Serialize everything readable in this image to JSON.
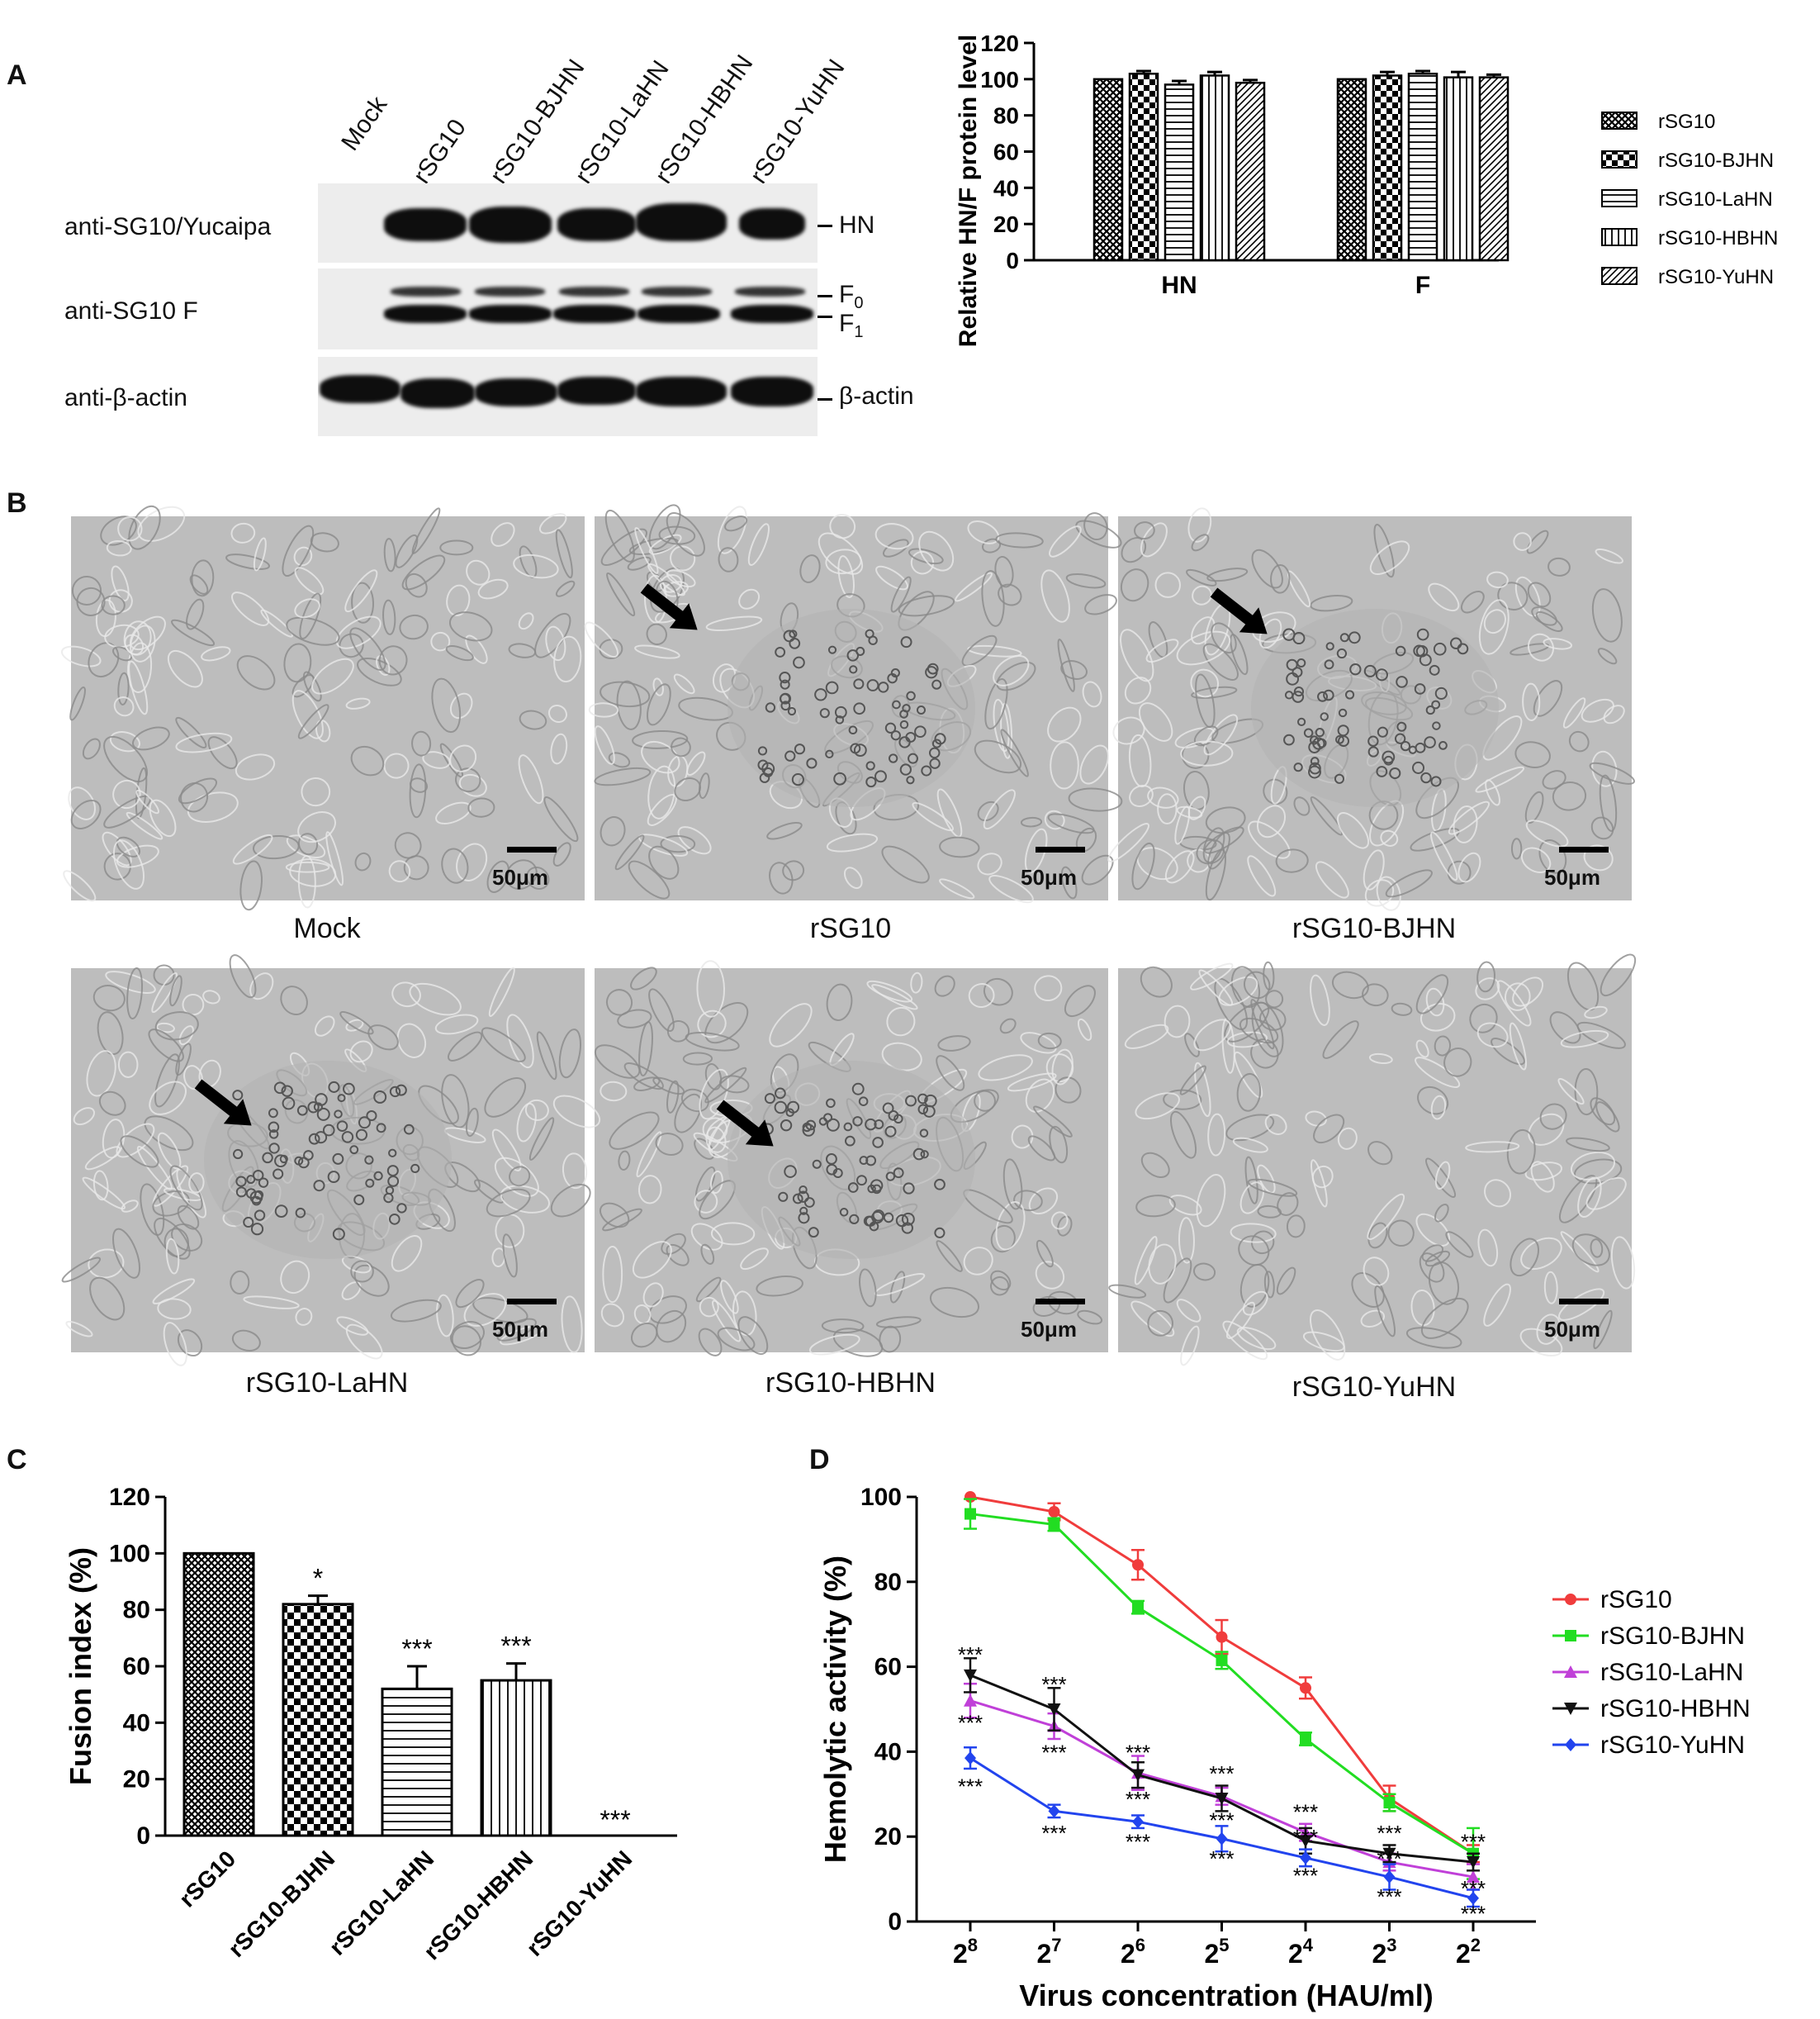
{
  "panel_letters": [
    "A",
    "B",
    "C",
    "D"
  ],
  "western": {
    "lanes": [
      "Mock",
      "rSG10",
      "rSG10-BJHN",
      "rSG10-LaHN",
      "rSG10-HBHN",
      "rSG10-YuHN"
    ],
    "rows": [
      "anti-SG10/Yucaipa",
      "anti-SG10 F",
      "anti-β-actin"
    ],
    "band_labels": {
      "hn": "HN",
      "f0": "F",
      "f0_sub": "0",
      "f1": "F",
      "f1_sub": "1",
      "actin": "β-actin"
    }
  },
  "micrographs": {
    "captions": [
      "Mock",
      "rSG10",
      "rSG10-BJHN",
      "rSG10-LaHN",
      "rSG10-HBHN",
      "rSG10-YuHN"
    ],
    "scale_label": "50μm"
  },
  "chart_data": [
    {
      "panel": "A",
      "type": "bar",
      "categories": [
        "HN",
        "F"
      ],
      "ylabel": "Relative HN/F protein level (%)",
      "ylim": [
        0,
        120
      ],
      "yticks": [
        0,
        20,
        40,
        60,
        80,
        100,
        120
      ],
      "legend_position": "right",
      "series": [
        {
          "name": "rSG10",
          "values": [
            100,
            100
          ],
          "errors": [
            0,
            0
          ],
          "pattern": "crosshatch"
        },
        {
          "name": "rSG10-BJHN",
          "values": [
            103,
            102
          ],
          "errors": [
            1.5,
            2
          ],
          "pattern": "checker"
        },
        {
          "name": "rSG10-LaHN",
          "values": [
            97,
            103
          ],
          "errors": [
            2,
            1.5
          ],
          "pattern": "hlines"
        },
        {
          "name": "rSG10-HBHN",
          "values": [
            102,
            101
          ],
          "errors": [
            2,
            3
          ],
          "pattern": "vlines"
        },
        {
          "name": "rSG10-YuHN",
          "values": [
            98,
            101
          ],
          "errors": [
            1.5,
            1.5
          ],
          "pattern": "diag"
        }
      ]
    },
    {
      "panel": "C",
      "type": "bar",
      "categories": [
        "rSG10",
        "rSG10-BJHN",
        "rSG10-LaHN",
        "rSG10-HBHN",
        "rSG10-YuHN"
      ],
      "values": [
        100,
        82,
        52,
        55,
        0
      ],
      "errors": [
        0,
        3,
        8,
        6,
        0
      ],
      "significance": [
        "",
        "*",
        "***",
        "***",
        "***"
      ],
      "patterns": [
        "crosshatch",
        "checker",
        "hlines",
        "vlines",
        "diag"
      ],
      "ylabel": "Fusion index (%)",
      "ylim": [
        0,
        120
      ],
      "yticks": [
        0,
        20,
        40,
        60,
        80,
        100,
        120
      ]
    },
    {
      "panel": "D",
      "type": "line",
      "x": [
        "2^8",
        "2^7",
        "2^6",
        "2^5",
        "2^4",
        "2^3",
        "2^2"
      ],
      "x_base": "2",
      "x_exponents": [
        "8",
        "7",
        "6",
        "5",
        "4",
        "3",
        "2"
      ],
      "xlabel": "Virus concentration (HAU/ml)",
      "ylabel": "Hemolytic activity (%)",
      "ylim": [
        0,
        100
      ],
      "yticks": [
        0,
        20,
        40,
        60,
        80,
        100
      ],
      "legend_position": "right",
      "series": [
        {
          "name": "rSG10",
          "color": "#f03c3c",
          "marker": "circle",
          "values": [
            100,
            96.5,
            84,
            67,
            55,
            29,
            16
          ],
          "errors": [
            0,
            2,
            3.5,
            4,
            2.5,
            3,
            2
          ]
        },
        {
          "name": "rSG10-BJHN",
          "color": "#22dd22",
          "marker": "square",
          "values": [
            96,
            93.5,
            74,
            61.5,
            43,
            28,
            16
          ],
          "errors": [
            3.5,
            1.5,
            1.5,
            2,
            1.5,
            2,
            6
          ]
        },
        {
          "name": "rSG10-LaHN",
          "color": "#c040d8",
          "marker": "triangle-up",
          "values": [
            52,
            46,
            35,
            29.5,
            21,
            14,
            10.5
          ],
          "errors": [
            4,
            3,
            4,
            2,
            2,
            2,
            3
          ]
        },
        {
          "name": "rSG10-HBHN",
          "color": "#111111",
          "marker": "triangle-down",
          "values": [
            58,
            50,
            34.5,
            29,
            19,
            16,
            14
          ],
          "errors": [
            4,
            5,
            3,
            3,
            3,
            2,
            2
          ]
        },
        {
          "name": "rSG10-YuHN",
          "color": "#2244ee",
          "marker": "diamond",
          "values": [
            38.5,
            26,
            23.5,
            19.5,
            15,
            10.5,
            5.5
          ],
          "errors": [
            2.5,
            1.5,
            1.5,
            3,
            2,
            3,
            2
          ]
        }
      ],
      "significance_label": "***",
      "significance_marks": [
        {
          "x": 0,
          "y": 63
        },
        {
          "x": 0,
          "y": 47
        },
        {
          "x": 0,
          "y": 32
        },
        {
          "x": 1,
          "y": 56
        },
        {
          "x": 1,
          "y": 40
        },
        {
          "x": 1,
          "y": 21
        },
        {
          "x": 2,
          "y": 40
        },
        {
          "x": 2,
          "y": 29
        },
        {
          "x": 2,
          "y": 19
        },
        {
          "x": 3,
          "y": 35
        },
        {
          "x": 3,
          "y": 24
        },
        {
          "x": 3,
          "y": 15
        },
        {
          "x": 4,
          "y": 26
        },
        {
          "x": 4,
          "y": 20
        },
        {
          "x": 4,
          "y": 11
        },
        {
          "x": 5,
          "y": 21
        },
        {
          "x": 5,
          "y": 15
        },
        {
          "x": 5,
          "y": 6
        },
        {
          "x": 6,
          "y": 19
        },
        {
          "x": 6,
          "y": 8
        },
        {
          "x": 6,
          "y": 2
        }
      ]
    }
  ]
}
